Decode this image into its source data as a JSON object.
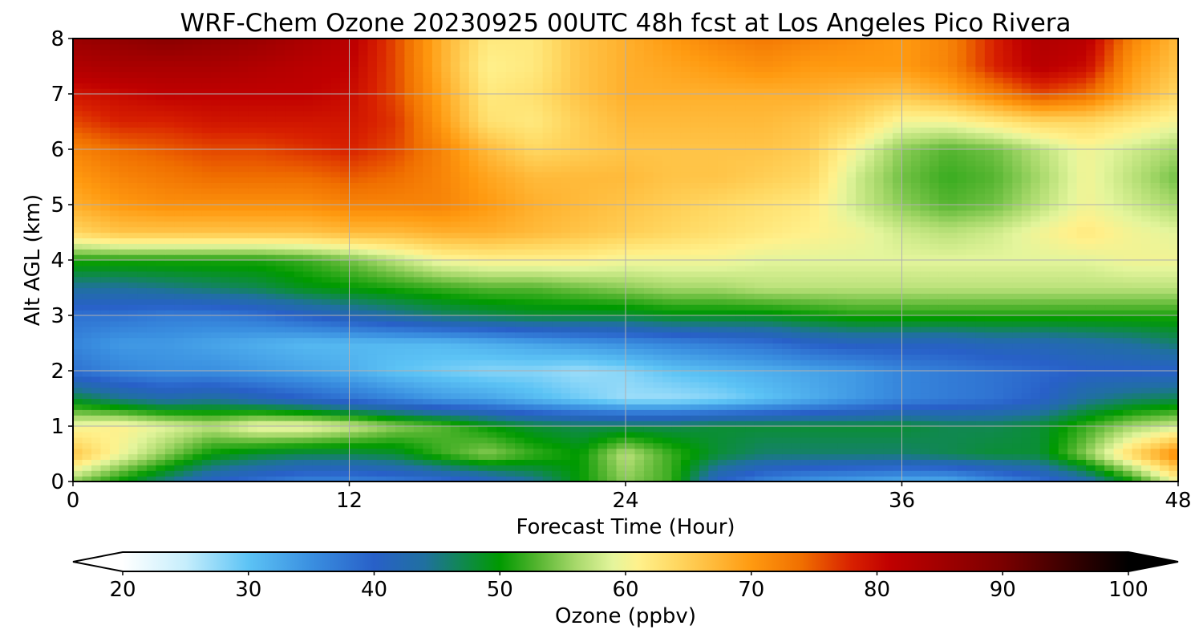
{
  "chart_data": {
    "type": "heatmap",
    "title": "WRF-Chem Ozone  20230925 00UTC 48h fcst at Los Angeles Pico Rivera",
    "xlabel": "Forecast Time (Hour)",
    "ylabel": "Alt AGL (km)",
    "xlim": [
      0,
      48
    ],
    "ylim": [
      0,
      8
    ],
    "xticks": [
      "0",
      "12",
      "24",
      "36",
      "48"
    ],
    "yticks": [
      "0",
      "1",
      "2",
      "3",
      "4",
      "5",
      "6",
      "7",
      "8"
    ],
    "grid": true,
    "colorbar": {
      "label": "Ozone  (ppbv)",
      "range": [
        20,
        100
      ],
      "ticks": [
        "20",
        "30",
        "40",
        "50",
        "60",
        "70",
        "80",
        "90",
        "100"
      ],
      "extend": "both",
      "location": "bottom",
      "stops": [
        [
          20,
          "#ffffff"
        ],
        [
          25,
          "#c6eefc"
        ],
        [
          30,
          "#5cc3f5"
        ],
        [
          35,
          "#3a8fe0"
        ],
        [
          40,
          "#2860c8"
        ],
        [
          44,
          "#2070a0"
        ],
        [
          47,
          "#108850"
        ],
        [
          50,
          "#009a00"
        ],
        [
          53,
          "#55b530"
        ],
        [
          56,
          "#a6d86a"
        ],
        [
          59,
          "#e4f59c"
        ],
        [
          61,
          "#fff18c"
        ],
        [
          64,
          "#ffd862"
        ],
        [
          67,
          "#ffba3a"
        ],
        [
          70,
          "#ff9a10"
        ],
        [
          74,
          "#f06f00"
        ],
        [
          78,
          "#d82000"
        ],
        [
          81,
          "#c00000"
        ],
        [
          85,
          "#a20000"
        ],
        [
          90,
          "#7a0000"
        ],
        [
          95,
          "#3c0000"
        ],
        [
          100,
          "#000000"
        ]
      ]
    },
    "x_hours": [
      0,
      2,
      4,
      6,
      8,
      10,
      12,
      14,
      16,
      18,
      20,
      22,
      24,
      26,
      28,
      30,
      32,
      34,
      36,
      38,
      40,
      42,
      44,
      46,
      48
    ],
    "y_km": [
      0,
      0.5,
      1,
      1.5,
      2,
      2.5,
      3,
      3.5,
      4,
      4.5,
      5,
      5.5,
      6,
      6.5,
      7,
      7.5,
      8
    ],
    "ozone_ppbv": [
      [
        55,
        50,
        45,
        40,
        38,
        36,
        36,
        37,
        38,
        40,
        44,
        50,
        55,
        52,
        40,
        36,
        34,
        33,
        32,
        32,
        35,
        38,
        42,
        50,
        60
      ],
      [
        66,
        60,
        55,
        50,
        48,
        47,
        47,
        48,
        52,
        55,
        52,
        50,
        57,
        52,
        48,
        46,
        46,
        46,
        46,
        47,
        48,
        48,
        55,
        64,
        72
      ],
      [
        60,
        61,
        59,
        57,
        60,
        60,
        58,
        55,
        53,
        50,
        48,
        47,
        47,
        47,
        48,
        48,
        48,
        48,
        48,
        47,
        47,
        48,
        52,
        56,
        58
      ],
      [
        48,
        45,
        43,
        44,
        42,
        40,
        38,
        36,
        34,
        33,
        31,
        29,
        27,
        27,
        28,
        30,
        32,
        34,
        36,
        37,
        38,
        40,
        44,
        46,
        47
      ],
      [
        38,
        36,
        35,
        35,
        34,
        33,
        32,
        30,
        29,
        28,
        28,
        27,
        28,
        30,
        31,
        32,
        33,
        34,
        36,
        37,
        38,
        39,
        40,
        40,
        40
      ],
      [
        36,
        34,
        34,
        33,
        32,
        31,
        31,
        31,
        31,
        32,
        33,
        34,
        35,
        36,
        37,
        38,
        40,
        41,
        41,
        41,
        42,
        42,
        43,
        44,
        46
      ],
      [
        38,
        38,
        37,
        37,
        38,
        40,
        42,
        44,
        46,
        47,
        48,
        48,
        48,
        49,
        49,
        49,
        50,
        51,
        51,
        51,
        51,
        51,
        51,
        51,
        51
      ],
      [
        44,
        44,
        45,
        46,
        47,
        49,
        50,
        51,
        52,
        53,
        53,
        54,
        55,
        56,
        56,
        57,
        57,
        57,
        57,
        57,
        57,
        57,
        57,
        57,
        57
      ],
      [
        51,
        51,
        51,
        51,
        51,
        52,
        54,
        57,
        60,
        61,
        61,
        61,
        60,
        60,
        60,
        59,
        59,
        59,
        59,
        59,
        59,
        59,
        59,
        60,
        60
      ],
      [
        64,
        66,
        66,
        66,
        66,
        66,
        67,
        67,
        68,
        68,
        67,
        66,
        65,
        64,
        63,
        62,
        61,
        60,
        58,
        57,
        58,
        60,
        62,
        60,
        59
      ],
      [
        68,
        70,
        71,
        71,
        71,
        71,
        72,
        72,
        72,
        70,
        68,
        67,
        66,
        65,
        64,
        63,
        62,
        58,
        55,
        53,
        54,
        57,
        60,
        58,
        56
      ],
      [
        70,
        72,
        73,
        74,
        74,
        74,
        75,
        74,
        72,
        69,
        67,
        67,
        67,
        66,
        66,
        65,
        64,
        58,
        54,
        52,
        53,
        56,
        60,
        57,
        54
      ],
      [
        72,
        74,
        75,
        76,
        76,
        77,
        78,
        76,
        72,
        67,
        64,
        65,
        66,
        66,
        66,
        66,
        65,
        60,
        55,
        53,
        54,
        57,
        60,
        58,
        56
      ],
      [
        76,
        78,
        78,
        79,
        79,
        79,
        79,
        77,
        70,
        63,
        62,
        65,
        67,
        67,
        67,
        67,
        66,
        64,
        60,
        60,
        62,
        64,
        64,
        62,
        60
      ],
      [
        79,
        80,
        81,
        81,
        81,
        81,
        80,
        76,
        69,
        62,
        63,
        66,
        68,
        68,
        68,
        68,
        68,
        67,
        66,
        68,
        72,
        76,
        74,
        68,
        64
      ],
      [
        83,
        84,
        84,
        84,
        83,
        82,
        81,
        76,
        68,
        61,
        62,
        66,
        68,
        69,
        70,
        71,
        70,
        70,
        70,
        72,
        78,
        82,
        80,
        70,
        66
      ],
      [
        86,
        87,
        88,
        87,
        86,
        84,
        82,
        76,
        68,
        62,
        62,
        66,
        68,
        70,
        72,
        73,
        72,
        71,
        70,
        72,
        78,
        83,
        82,
        72,
        67
      ]
    ]
  }
}
